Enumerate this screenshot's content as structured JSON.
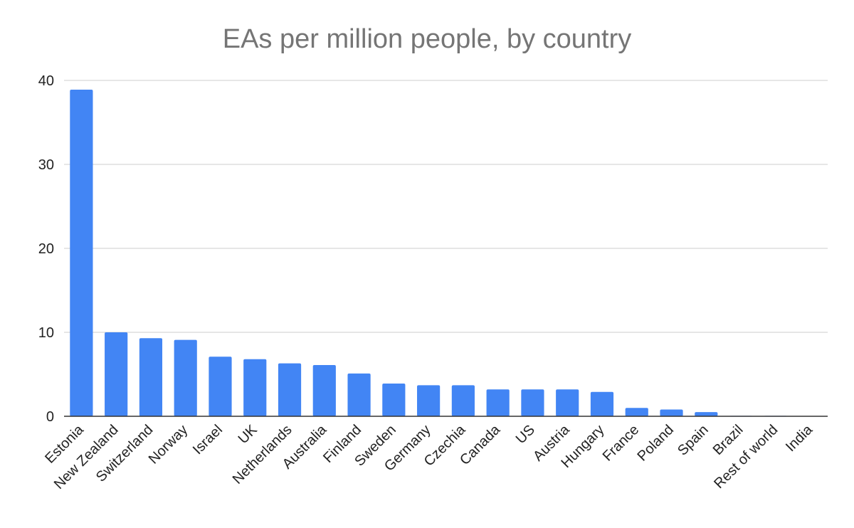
{
  "chart_data": {
    "type": "bar",
    "title": "EAs per million people, by country",
    "xlabel": "",
    "ylabel": "",
    "ylim": [
      0,
      40
    ],
    "yticks": [
      0,
      10,
      20,
      30,
      40
    ],
    "grid": true,
    "bar_color": "#4285f4",
    "categories": [
      "Estonia",
      "New Zealand",
      "Switzerland",
      "Norway",
      "Israel",
      "UK",
      "Netherlands",
      "Australia",
      "Finland",
      "Sweden",
      "Germany",
      "Czechia",
      "Canada",
      "US",
      "Austria",
      "Hungary",
      "France",
      "Poland",
      "Spain",
      "Brazil",
      "Rest of world",
      "India"
    ],
    "values": [
      38.9,
      10.0,
      9.3,
      9.1,
      7.1,
      6.8,
      6.3,
      6.1,
      5.1,
      3.9,
      3.7,
      3.7,
      3.2,
      3.2,
      3.2,
      2.9,
      1.0,
      0.8,
      0.5,
      0.05,
      0.05,
      0.02
    ]
  }
}
